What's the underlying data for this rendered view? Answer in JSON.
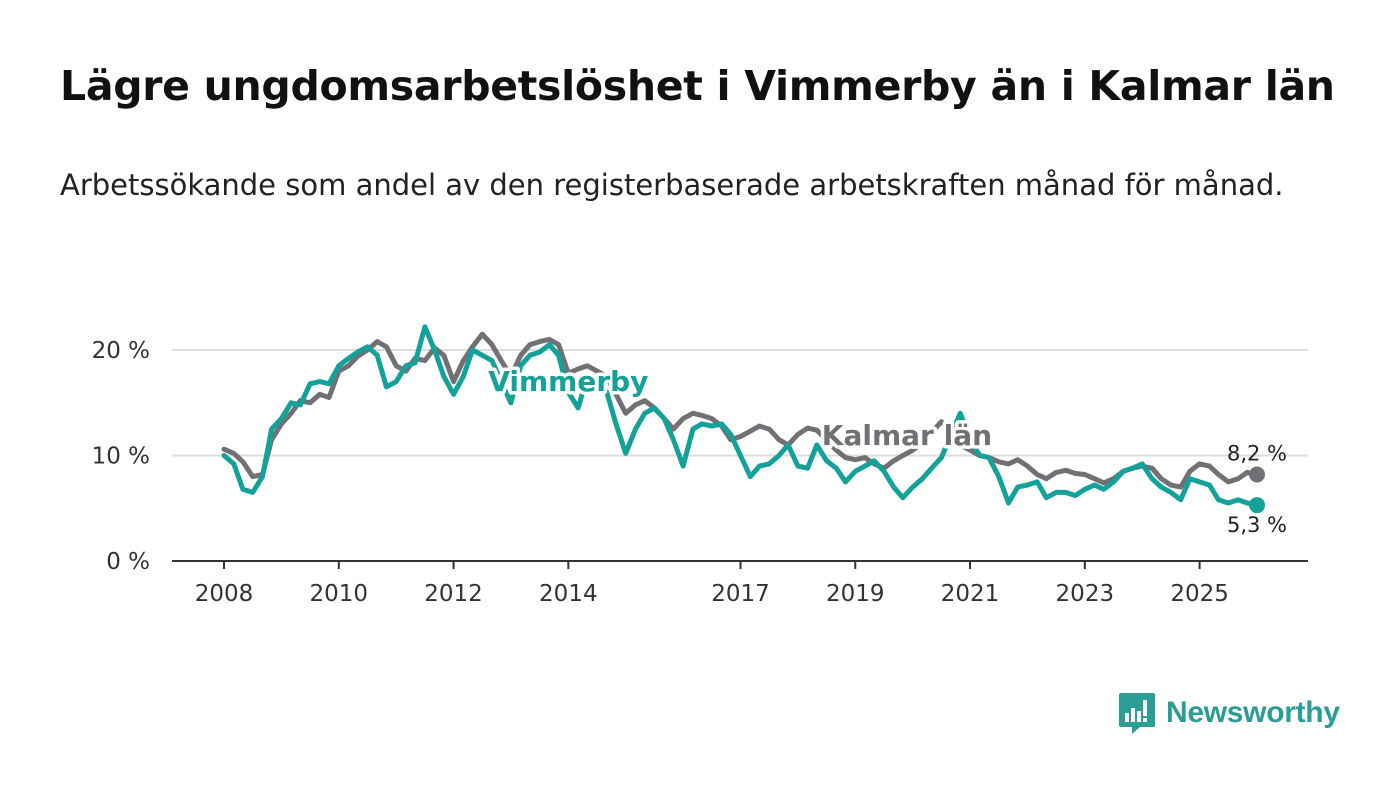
{
  "title": "Lägre ungdomsarbetslöshet i Vimmerby än i Kalmar län",
  "subtitle": "Arbetssökande som andel av den registerbaserade arbetskraften månad för månad.",
  "brand": {
    "name": "Newsworthy",
    "icon": "bar-chart-speech-bubble-icon"
  },
  "colors": {
    "vimmerby": "#12a29a",
    "kalmar": "#727075",
    "grid": "#dddddd",
    "axis": "#333333"
  },
  "chart_data": {
    "type": "line",
    "title": "Lägre ungdomsarbetslöshet i Vimmerby än i Kalmar län",
    "xlabel": "",
    "ylabel": "",
    "ylim": [
      0,
      22
    ],
    "yticks": [
      0,
      10,
      20
    ],
    "ytick_labels": [
      "0 %",
      "10 %",
      "20 %"
    ],
    "xlim": [
      2008,
      2026
    ],
    "xticks": [
      2008,
      2010,
      2012,
      2014,
      2017,
      2019,
      2021,
      2023,
      2025
    ],
    "xtick_labels": [
      "2008",
      "2010",
      "2012",
      "2014",
      "2017",
      "2019",
      "2021",
      "2023",
      "2025"
    ],
    "grid": true,
    "legend": "direct labels on lines",
    "series": [
      {
        "name": "Kalmar län",
        "color": "#727075",
        "end_label": "8,2 %",
        "points": [
          [
            2008.0,
            10.6
          ],
          [
            2008.17,
            10.2
          ],
          [
            2008.33,
            9.4
          ],
          [
            2008.5,
            8.0
          ],
          [
            2008.67,
            8.2
          ],
          [
            2008.83,
            11.5
          ],
          [
            2009.0,
            13.0
          ],
          [
            2009.17,
            14.0
          ],
          [
            2009.33,
            15.2
          ],
          [
            2009.5,
            15.0
          ],
          [
            2009.67,
            15.8
          ],
          [
            2009.83,
            15.5
          ],
          [
            2010.0,
            18.0
          ],
          [
            2010.17,
            18.5
          ],
          [
            2010.33,
            19.4
          ],
          [
            2010.5,
            20.0
          ],
          [
            2010.67,
            20.8
          ],
          [
            2010.83,
            20.3
          ],
          [
            2011.0,
            18.5
          ],
          [
            2011.17,
            18.0
          ],
          [
            2011.33,
            19.2
          ],
          [
            2011.5,
            19.0
          ],
          [
            2011.67,
            20.2
          ],
          [
            2011.83,
            19.5
          ],
          [
            2012.0,
            17.0
          ],
          [
            2012.17,
            19.0
          ],
          [
            2012.33,
            20.3
          ],
          [
            2012.5,
            21.5
          ],
          [
            2012.67,
            20.5
          ],
          [
            2012.83,
            19.0
          ],
          [
            2013.0,
            17.5
          ],
          [
            2013.17,
            19.5
          ],
          [
            2013.33,
            20.5
          ],
          [
            2013.5,
            20.8
          ],
          [
            2013.67,
            21.0
          ],
          [
            2013.83,
            20.5
          ],
          [
            2014.0,
            17.8
          ],
          [
            2014.17,
            18.2
          ],
          [
            2014.33,
            18.5
          ],
          [
            2014.5,
            18.0
          ],
          [
            2014.67,
            17.5
          ],
          [
            2014.83,
            15.8
          ],
          [
            2015.0,
            14.0
          ],
          [
            2015.17,
            14.8
          ],
          [
            2015.33,
            15.2
          ],
          [
            2015.5,
            14.5
          ],
          [
            2015.67,
            13.5
          ],
          [
            2015.83,
            12.5
          ],
          [
            2016.0,
            13.5
          ],
          [
            2016.17,
            14.0
          ],
          [
            2016.33,
            13.8
          ],
          [
            2016.5,
            13.5
          ],
          [
            2016.67,
            12.8
          ],
          [
            2016.83,
            11.5
          ],
          [
            2017.0,
            11.8
          ],
          [
            2017.17,
            12.3
          ],
          [
            2017.33,
            12.8
          ],
          [
            2017.5,
            12.5
          ],
          [
            2017.67,
            11.5
          ],
          [
            2017.83,
            11.0
          ],
          [
            2018.0,
            12.0
          ],
          [
            2018.17,
            12.6
          ],
          [
            2018.33,
            12.4
          ],
          [
            2018.5,
            11.5
          ],
          [
            2018.67,
            10.5
          ],
          [
            2018.83,
            9.8
          ],
          [
            2019.0,
            9.6
          ],
          [
            2019.17,
            9.8
          ],
          [
            2019.33,
            9.2
          ],
          [
            2019.5,
            8.8
          ],
          [
            2019.67,
            9.5
          ],
          [
            2019.83,
            10.0
          ],
          [
            2020.0,
            10.5
          ],
          [
            2020.17,
            11.2
          ],
          [
            2020.33,
            12.2
          ],
          [
            2020.5,
            13.2
          ],
          [
            2020.67,
            12.5
          ],
          [
            2020.83,
            11.0
          ],
          [
            2021.0,
            10.5
          ],
          [
            2021.17,
            10.0
          ],
          [
            2021.33,
            9.8
          ],
          [
            2021.5,
            9.4
          ],
          [
            2021.67,
            9.2
          ],
          [
            2021.83,
            9.6
          ],
          [
            2022.0,
            9.0
          ],
          [
            2022.17,
            8.2
          ],
          [
            2022.33,
            7.8
          ],
          [
            2022.5,
            8.4
          ],
          [
            2022.67,
            8.6
          ],
          [
            2022.83,
            8.3
          ],
          [
            2023.0,
            8.2
          ],
          [
            2023.17,
            7.8
          ],
          [
            2023.33,
            7.4
          ],
          [
            2023.5,
            7.8
          ],
          [
            2023.67,
            8.5
          ],
          [
            2023.83,
            8.8
          ],
          [
            2024.0,
            9.0
          ],
          [
            2024.17,
            8.8
          ],
          [
            2024.33,
            7.8
          ],
          [
            2024.5,
            7.2
          ],
          [
            2024.67,
            7.0
          ],
          [
            2024.83,
            8.5
          ],
          [
            2025.0,
            9.2
          ],
          [
            2025.17,
            9.0
          ],
          [
            2025.33,
            8.2
          ],
          [
            2025.5,
            7.5
          ],
          [
            2025.67,
            7.8
          ],
          [
            2025.83,
            8.4
          ],
          [
            2026.0,
            8.2
          ]
        ]
      },
      {
        "name": "Vimmerby",
        "color": "#12a29a",
        "end_label": "5,3 %",
        "points": [
          [
            2008.0,
            10.0
          ],
          [
            2008.17,
            9.2
          ],
          [
            2008.33,
            6.8
          ],
          [
            2008.5,
            6.5
          ],
          [
            2008.67,
            8.0
          ],
          [
            2008.83,
            12.5
          ],
          [
            2009.0,
            13.5
          ],
          [
            2009.17,
            15.0
          ],
          [
            2009.33,
            14.8
          ],
          [
            2009.5,
            16.8
          ],
          [
            2009.67,
            17.0
          ],
          [
            2009.83,
            16.8
          ],
          [
            2010.0,
            18.5
          ],
          [
            2010.17,
            19.2
          ],
          [
            2010.33,
            19.8
          ],
          [
            2010.5,
            20.3
          ],
          [
            2010.67,
            19.5
          ],
          [
            2010.83,
            16.5
          ],
          [
            2011.0,
            17.0
          ],
          [
            2011.17,
            18.5
          ],
          [
            2011.33,
            18.8
          ],
          [
            2011.5,
            22.2
          ],
          [
            2011.67,
            20.0
          ],
          [
            2011.83,
            17.5
          ],
          [
            2012.0,
            15.8
          ],
          [
            2012.17,
            17.5
          ],
          [
            2012.33,
            20.0
          ],
          [
            2012.5,
            19.5
          ],
          [
            2012.67,
            19.0
          ],
          [
            2012.83,
            17.0
          ],
          [
            2013.0,
            15.0
          ],
          [
            2013.17,
            18.5
          ],
          [
            2013.33,
            19.5
          ],
          [
            2013.5,
            19.8
          ],
          [
            2013.67,
            20.5
          ],
          [
            2013.83,
            19.5
          ],
          [
            2014.0,
            16.0
          ],
          [
            2014.17,
            14.5
          ],
          [
            2014.33,
            17.5
          ],
          [
            2014.5,
            16.5
          ],
          [
            2014.67,
            16.0
          ],
          [
            2014.83,
            13.0
          ],
          [
            2015.0,
            10.2
          ],
          [
            2015.17,
            12.5
          ],
          [
            2015.33,
            14.0
          ],
          [
            2015.5,
            14.5
          ],
          [
            2015.67,
            13.5
          ],
          [
            2015.83,
            11.5
          ],
          [
            2016.0,
            9.0
          ],
          [
            2016.17,
            12.5
          ],
          [
            2016.33,
            13.0
          ],
          [
            2016.5,
            12.8
          ],
          [
            2016.67,
            13.0
          ],
          [
            2016.83,
            12.0
          ],
          [
            2017.0,
            10.0
          ],
          [
            2017.17,
            8.0
          ],
          [
            2017.33,
            9.0
          ],
          [
            2017.5,
            9.2
          ],
          [
            2017.67,
            10.0
          ],
          [
            2017.83,
            11.0
          ],
          [
            2018.0,
            9.0
          ],
          [
            2018.17,
            8.8
          ],
          [
            2018.33,
            11.0
          ],
          [
            2018.5,
            9.5
          ],
          [
            2018.67,
            8.8
          ],
          [
            2018.83,
            7.5
          ],
          [
            2019.0,
            8.5
          ],
          [
            2019.17,
            9.0
          ],
          [
            2019.33,
            9.5
          ],
          [
            2019.5,
            8.5
          ],
          [
            2019.67,
            7.0
          ],
          [
            2019.83,
            6.0
          ],
          [
            2020.0,
            7.0
          ],
          [
            2020.17,
            7.8
          ],
          [
            2020.33,
            8.8
          ],
          [
            2020.5,
            9.8
          ],
          [
            2020.67,
            12.0
          ],
          [
            2020.83,
            14.0
          ],
          [
            2021.0,
            11.5
          ],
          [
            2021.17,
            10.0
          ],
          [
            2021.33,
            9.8
          ],
          [
            2021.5,
            8.0
          ],
          [
            2021.67,
            5.5
          ],
          [
            2021.83,
            7.0
          ],
          [
            2022.0,
            7.2
          ],
          [
            2022.17,
            7.5
          ],
          [
            2022.33,
            6.0
          ],
          [
            2022.5,
            6.5
          ],
          [
            2022.67,
            6.5
          ],
          [
            2022.83,
            6.2
          ],
          [
            2023.0,
            6.8
          ],
          [
            2023.17,
            7.2
          ],
          [
            2023.33,
            6.8
          ],
          [
            2023.5,
            7.5
          ],
          [
            2023.67,
            8.5
          ],
          [
            2023.83,
            8.8
          ],
          [
            2024.0,
            9.2
          ],
          [
            2024.17,
            7.8
          ],
          [
            2024.33,
            7.0
          ],
          [
            2024.5,
            6.5
          ],
          [
            2024.67,
            5.8
          ],
          [
            2024.83,
            7.8
          ],
          [
            2025.0,
            7.5
          ],
          [
            2025.17,
            7.2
          ],
          [
            2025.33,
            5.8
          ],
          [
            2025.5,
            5.5
          ],
          [
            2025.67,
            5.8
          ],
          [
            2025.83,
            5.5
          ],
          [
            2026.0,
            5.3
          ]
        ]
      }
    ],
    "annotations": [
      {
        "text": "Vimmerby",
        "series": "Vimmerby",
        "x": 2014.0,
        "y": 16.1
      },
      {
        "text": "Kalmar län",
        "series": "Kalmar län",
        "x": 2019.9,
        "y": 11.0
      }
    ]
  }
}
